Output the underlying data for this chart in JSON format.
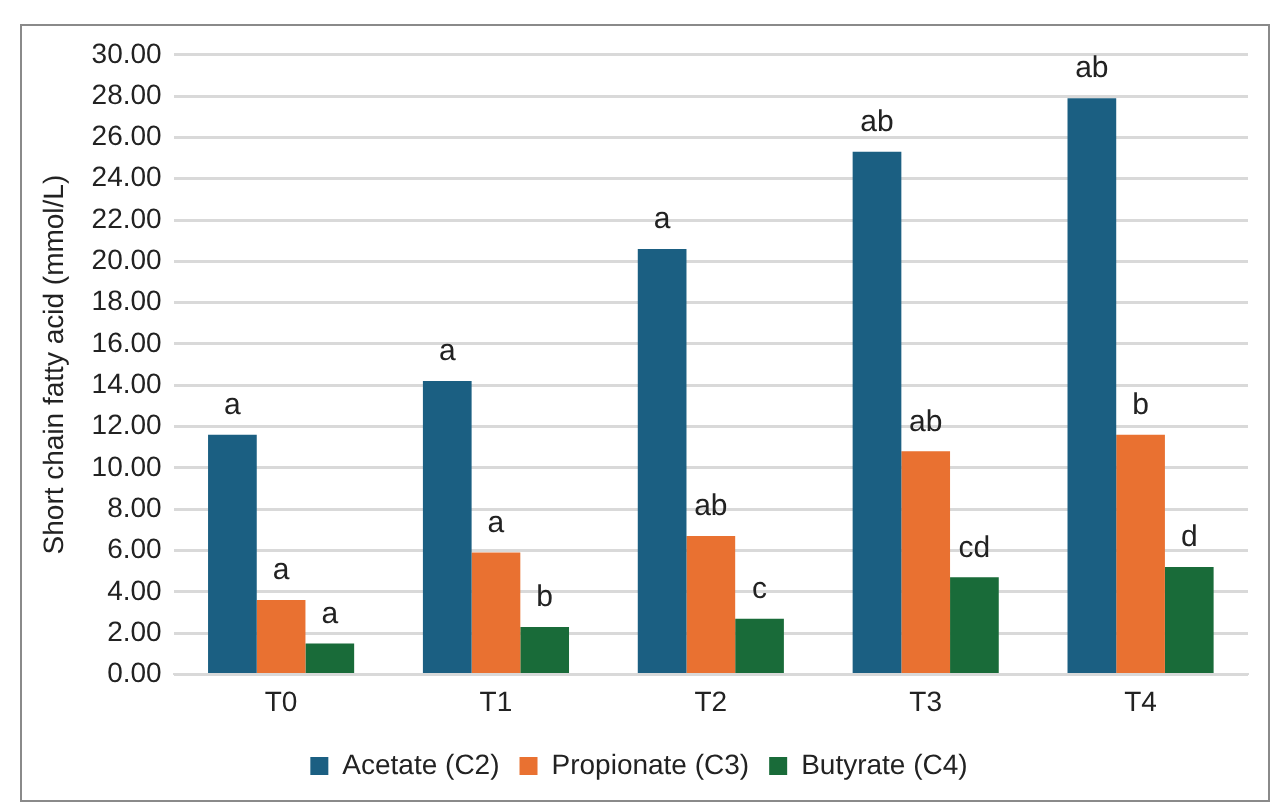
{
  "chart_data": {
    "type": "bar",
    "ylabel": "Short chain fatty acid (mmol/L)",
    "categories": [
      "T0",
      "T1",
      "T2",
      "T3",
      "T4"
    ],
    "series": [
      {
        "name": "Acetate (C2)",
        "color": "#1b5f82",
        "values": [
          11.6,
          14.2,
          20.6,
          25.3,
          27.9
        ],
        "value_labels": [
          "a",
          "a",
          "a",
          "ab",
          "ab"
        ]
      },
      {
        "name": "Propionate (C3)",
        "color": "#e97131",
        "values": [
          3.6,
          5.9,
          6.7,
          10.8,
          11.6
        ],
        "value_labels": [
          "a",
          "a",
          "ab",
          "ab",
          "b"
        ]
      },
      {
        "name": "Butyrate (C4)",
        "color": "#196b39",
        "values": [
          1.5,
          2.3,
          2.7,
          4.7,
          5.2
        ],
        "value_labels": [
          "a",
          "b",
          "c",
          "cd",
          "d"
        ]
      }
    ],
    "ylim": [
      0,
      30
    ],
    "yticks": [
      {
        "value": 0,
        "label": "0.00"
      },
      {
        "value": 2,
        "label": "2.00"
      },
      {
        "value": 4,
        "label": "4.00"
      },
      {
        "value": 6,
        "label": "6.00"
      },
      {
        "value": 8,
        "label": "8.00"
      },
      {
        "value": 10,
        "label": "10.00"
      },
      {
        "value": 12,
        "label": "12.00"
      },
      {
        "value": 14,
        "label": "14.00"
      },
      {
        "value": 16,
        "label": "16.00"
      },
      {
        "value": 18,
        "label": "18.00"
      },
      {
        "value": 20,
        "label": "20.00"
      },
      {
        "value": 22,
        "label": "22.00"
      },
      {
        "value": 24,
        "label": "24.00"
      },
      {
        "value": 26,
        "label": "26.00"
      },
      {
        "value": 28,
        "label": "28.00"
      },
      {
        "value": 30,
        "label": "30.00"
      }
    ],
    "grid": "y",
    "legend": "bottom"
  }
}
